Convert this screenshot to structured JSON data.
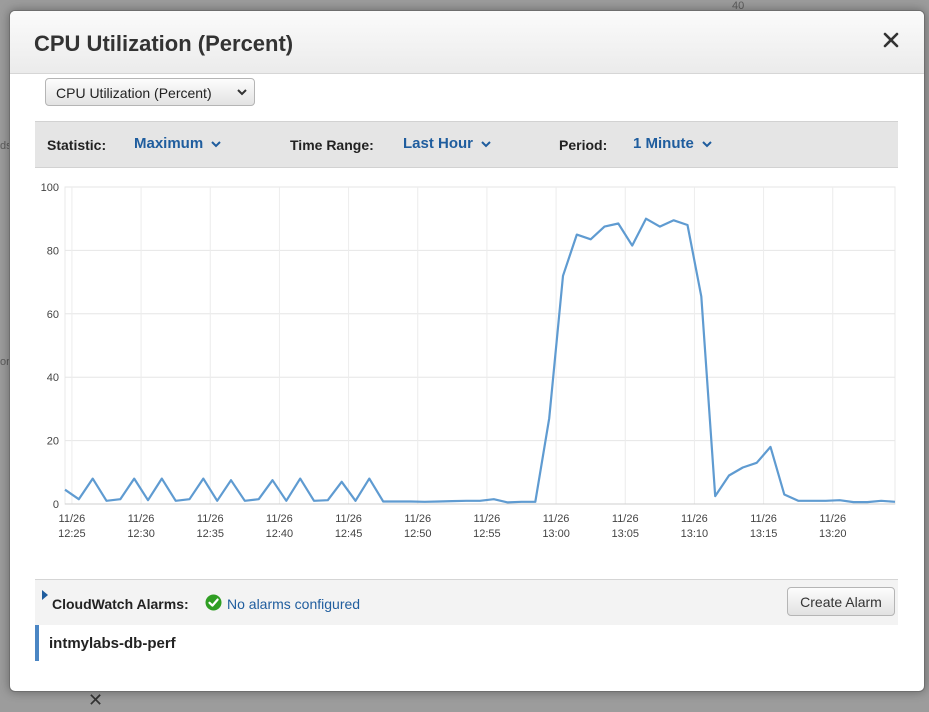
{
  "backdrop": {
    "axis_fragment": "40",
    "left_fragment_1": "ds",
    "left_fragment_2": "or"
  },
  "modal": {
    "title": "CPU Utilization (Percent)"
  },
  "metric_select": {
    "selected": "CPU Utilization (Percent)"
  },
  "toolbar": {
    "statistic_label": "Statistic:",
    "statistic_value": "Maximum",
    "time_range_label": "Time Range:",
    "time_range_value": "Last Hour",
    "period_label": "Period:",
    "period_value": "1 Minute"
  },
  "alarms": {
    "label": "CloudWatch Alarms:",
    "status": "No alarms configured",
    "create_button": "Create Alarm"
  },
  "instance": {
    "name": "intmylabs-db-perf"
  },
  "colors": {
    "series_line": "#5f9bd1",
    "link_blue": "#1f5d9e",
    "ok_green": "#2f9e23"
  },
  "chart_data": {
    "type": "line",
    "title": "",
    "xlabel": "",
    "ylabel": "",
    "ylim": [
      0,
      100
    ],
    "yticks": [
      "0",
      "20",
      "40",
      "60",
      "80",
      "100"
    ],
    "xticks": [
      {
        "date": "11/26",
        "time": "12:25"
      },
      {
        "date": "11/26",
        "time": "12:30"
      },
      {
        "date": "11/26",
        "time": "12:35"
      },
      {
        "date": "11/26",
        "time": "12:40"
      },
      {
        "date": "11/26",
        "time": "12:45"
      },
      {
        "date": "11/26",
        "time": "12:50"
      },
      {
        "date": "11/26",
        "time": "12:55"
      },
      {
        "date": "11/26",
        "time": "13:00"
      },
      {
        "date": "11/26",
        "time": "13:05"
      },
      {
        "date": "11/26",
        "time": "13:10"
      },
      {
        "date": "11/26",
        "time": "13:15"
      },
      {
        "date": "11/26",
        "time": "13:20"
      }
    ],
    "x": [
      "12:25",
      "12:26",
      "12:27",
      "12:28",
      "12:29",
      "12:30",
      "12:31",
      "12:32",
      "12:33",
      "12:34",
      "12:35",
      "12:36",
      "12:37",
      "12:38",
      "12:39",
      "12:40",
      "12:41",
      "12:42",
      "12:43",
      "12:44",
      "12:45",
      "12:46",
      "12:47",
      "12:48",
      "12:49",
      "12:50",
      "12:51",
      "12:52",
      "12:53",
      "12:54",
      "12:55",
      "12:56",
      "12:57",
      "12:58",
      "12:59",
      "13:00",
      "13:01",
      "13:02",
      "13:03",
      "13:04",
      "13:05",
      "13:06",
      "13:07",
      "13:08",
      "13:09",
      "13:10",
      "13:11",
      "13:12",
      "13:13",
      "13:14",
      "13:15",
      "13:16",
      "13:17",
      "13:18",
      "13:19",
      "13:20",
      "13:21",
      "13:22",
      "13:23",
      "13:24",
      "13:25"
    ],
    "series": [
      {
        "values": [
          4.5,
          1.5,
          8,
          1,
          1.5,
          8,
          1.2,
          8,
          1,
          1.5,
          8,
          1,
          7.5,
          1,
          1.5,
          7.5,
          1,
          8,
          1,
          1.2,
          7,
          1,
          8,
          0.8,
          0.8,
          0.8,
          0.7,
          0.8,
          0.9,
          1,
          1,
          1.5,
          0.5,
          0.7,
          0.7,
          27,
          72,
          85,
          83.5,
          87.5,
          88.5,
          81.5,
          90,
          87.5,
          89.5,
          88,
          65.5,
          2.5,
          9,
          11.5,
          13,
          18,
          3,
          1,
          1,
          1,
          1.2,
          0.6,
          0.6,
          1,
          0.7
        ]
      }
    ],
    "grid": true,
    "legend": "none"
  }
}
